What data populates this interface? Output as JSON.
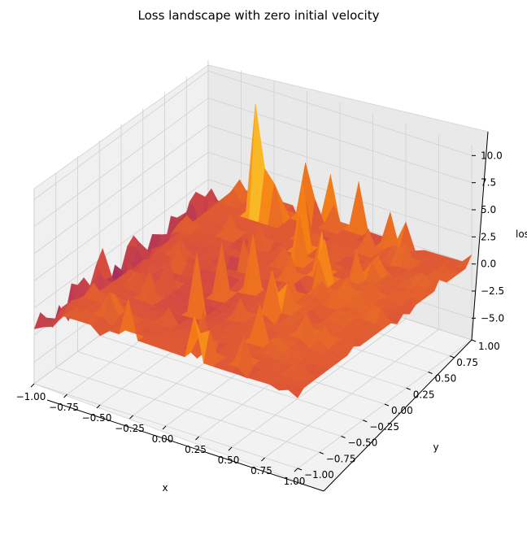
{
  "chart_data": {
    "type": "surface3d",
    "title": "Loss landscape with zero initial velocity",
    "xlabel": "x",
    "ylabel": "y",
    "zlabel": "loss",
    "xlim": [
      -1.0,
      1.0
    ],
    "ylim": [
      -1.0,
      1.0
    ],
    "zlim": [
      -7.0,
      11.0
    ],
    "x_ticks": [
      "−1.00",
      "−0.75",
      "−0.50",
      "−0.25",
      "0.00",
      "0.25",
      "0.50",
      "0.75",
      "1.00"
    ],
    "y_ticks": [
      "−1.00",
      "−0.75",
      "−0.50",
      "−0.25",
      "0.00",
      "0.25",
      "0.50",
      "0.75",
      "1.00"
    ],
    "z_ticks": [
      "−5.0",
      "−2.5",
      "0.0",
      "2.5",
      "5.0",
      "7.5",
      "10.0"
    ],
    "colormap": "inferno",
    "grid": true,
    "surface_description": "noisy loss surface; mostly flat near 0 with many spikes, largest peak ~10 near x=-0.5, y=0.75; trough ~-5 near x=-1, y=-0.4"
  }
}
